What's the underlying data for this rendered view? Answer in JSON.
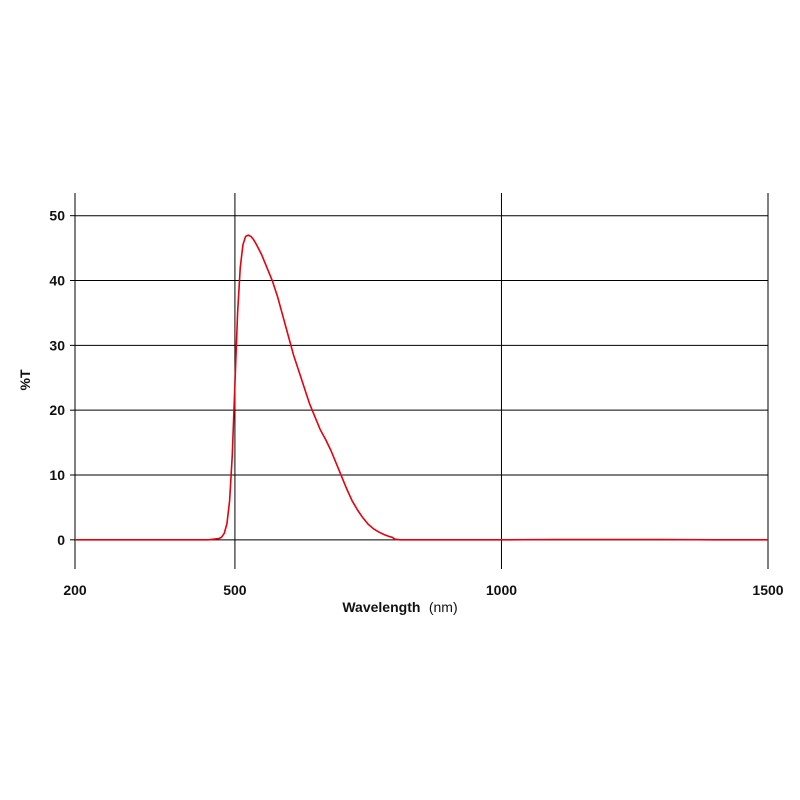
{
  "chart_data": {
    "type": "line",
    "xlabel": "Wavelength",
    "xlabel_unit": "(nm)",
    "ylabel": "%T",
    "xlim": [
      200,
      1500
    ],
    "ylim": [
      -4.5,
      53.5
    ],
    "x_ticks": [
      200,
      500,
      1000,
      1500
    ],
    "x_tick_labels": [
      "200",
      "500",
      "1000",
      "1500"
    ],
    "x_gridlines": [
      500,
      1000,
      1500
    ],
    "y_ticks": [
      0,
      10,
      20,
      30,
      40,
      50
    ],
    "y_tick_labels": [
      "0",
      "10",
      "20",
      "30",
      "40",
      "50"
    ],
    "grid": true,
    "legend": "none",
    "series": [
      {
        "color": "#e8000b",
        "x": [
          200,
          300,
          400,
          450,
          470,
          475,
          480,
          485,
          490,
          495,
          500,
          505,
          510,
          515,
          520,
          525,
          530,
          535,
          540,
          545,
          550,
          560,
          570,
          580,
          590,
          600,
          610,
          620,
          630,
          640,
          650,
          660,
          670,
          680,
          690,
          700,
          710,
          720,
          730,
          740,
          750,
          760,
          770,
          780,
          790,
          795,
          800,
          810,
          850,
          900,
          1000,
          1100,
          1200,
          1300,
          1400,
          1500
        ],
        "y": [
          0,
          0,
          0,
          0,
          0.2,
          0.4,
          1.0,
          2.5,
          6.0,
          13.0,
          24.0,
          35.0,
          42.0,
          45.5,
          46.8,
          47.0,
          46.8,
          46.3,
          45.6,
          44.8,
          44.0,
          42.0,
          40.0,
          37.5,
          34.5,
          31.5,
          28.5,
          26.0,
          23.5,
          21.0,
          19.0,
          17.0,
          15.5,
          13.8,
          11.8,
          9.8,
          7.8,
          6.0,
          4.6,
          3.4,
          2.4,
          1.7,
          1.2,
          0.8,
          0.5,
          0.4,
          0.1,
          0,
          0,
          0,
          0,
          0.05,
          0.05,
          0.05,
          0,
          0
        ]
      }
    ]
  }
}
